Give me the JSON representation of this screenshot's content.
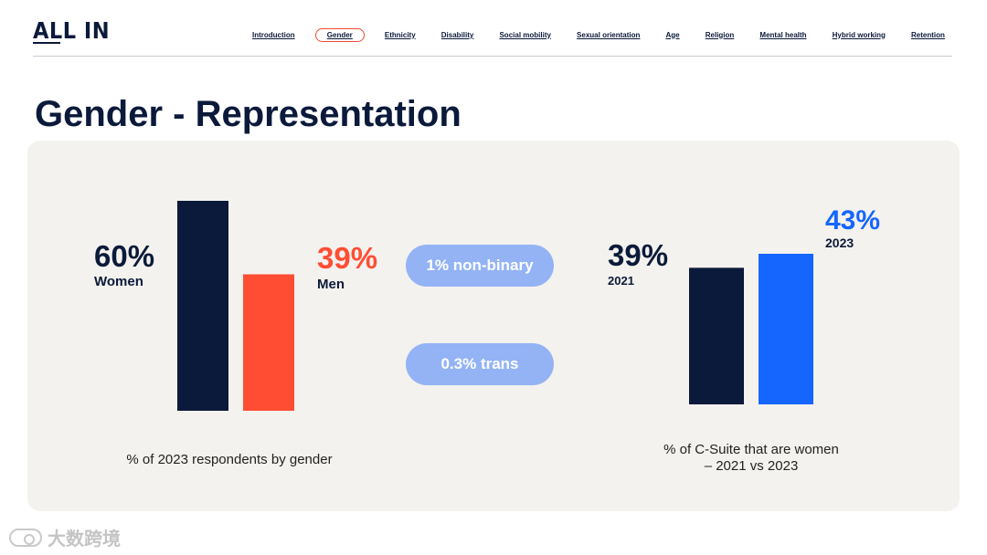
{
  "brand": {
    "logo_text": "ALL IN"
  },
  "nav": {
    "items": [
      {
        "label": "Introduction",
        "name": "nav-introduction"
      },
      {
        "label": "Gender",
        "name": "nav-gender",
        "active": true
      },
      {
        "label": "Ethnicity",
        "name": "nav-ethnicity"
      },
      {
        "label": "Disability",
        "name": "nav-disability"
      },
      {
        "label": "Social mobility",
        "name": "nav-social-mobility"
      },
      {
        "label": "Sexual orientation",
        "name": "nav-sexual-orientation"
      },
      {
        "label": "Age",
        "name": "nav-age"
      },
      {
        "label": "Religion",
        "name": "nav-religion"
      },
      {
        "label": "Mental health",
        "name": "nav-mental-health"
      },
      {
        "label": "Hybrid working",
        "name": "nav-hybrid-working"
      },
      {
        "label": "Retention",
        "name": "nav-retention"
      }
    ]
  },
  "page": {
    "title": "Gender - Representation"
  },
  "colors": {
    "navy": "#0b1a3a",
    "red": "#ff4d33",
    "blue": "#1566ff",
    "pill": "#93b3f5",
    "panel": "#f4f2ee"
  },
  "chart_data": [
    {
      "type": "bar",
      "categories": [
        "Women",
        "Men"
      ],
      "values": [
        60,
        39
      ],
      "value_labels": [
        "60%",
        "39%"
      ],
      "colors": [
        "#0b1a3a",
        "#ff4d33"
      ],
      "caption": "% of 2023 respondents by gender",
      "ylim": [
        0,
        60
      ]
    },
    {
      "type": "bar",
      "categories": [
        "2021",
        "2023"
      ],
      "values": [
        39,
        43
      ],
      "value_labels": [
        "39%",
        "43%"
      ],
      "colors": [
        "#0b1a3a",
        "#1566ff"
      ],
      "caption_lines": [
        "% of C-Suite that are women",
        "– 2021 vs 2023"
      ],
      "ylim": [
        0,
        43
      ]
    }
  ],
  "callouts": {
    "non_binary": "1% non-binary",
    "trans": "0.3% trans"
  },
  "watermark": {
    "text": "大数跨境"
  }
}
